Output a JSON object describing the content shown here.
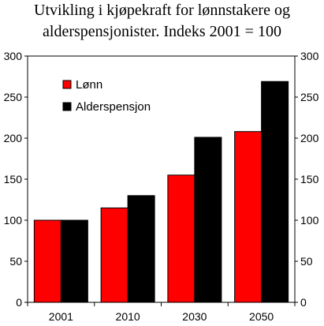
{
  "chart_data": {
    "type": "bar",
    "title_lines": [
      "Utvikling i kjøpekraft for lønnstakere og",
      "alderspensjonister. Indeks 2001 = 100"
    ],
    "categories": [
      "2001",
      "2010",
      "2030",
      "2050"
    ],
    "series": [
      {
        "name": "Lønn",
        "values": [
          100,
          115,
          155,
          208
        ],
        "color": "#ff0000"
      },
      {
        "name": "Alderspensjon",
        "values": [
          100,
          130,
          201,
          269
        ],
        "color": "#000000"
      }
    ],
    "ylim": [
      0,
      300
    ],
    "yticks": [
      0,
      50,
      100,
      150,
      200,
      250,
      300
    ],
    "y_axis_both_sides": true,
    "grid": false,
    "legend_position": "top-left"
  }
}
